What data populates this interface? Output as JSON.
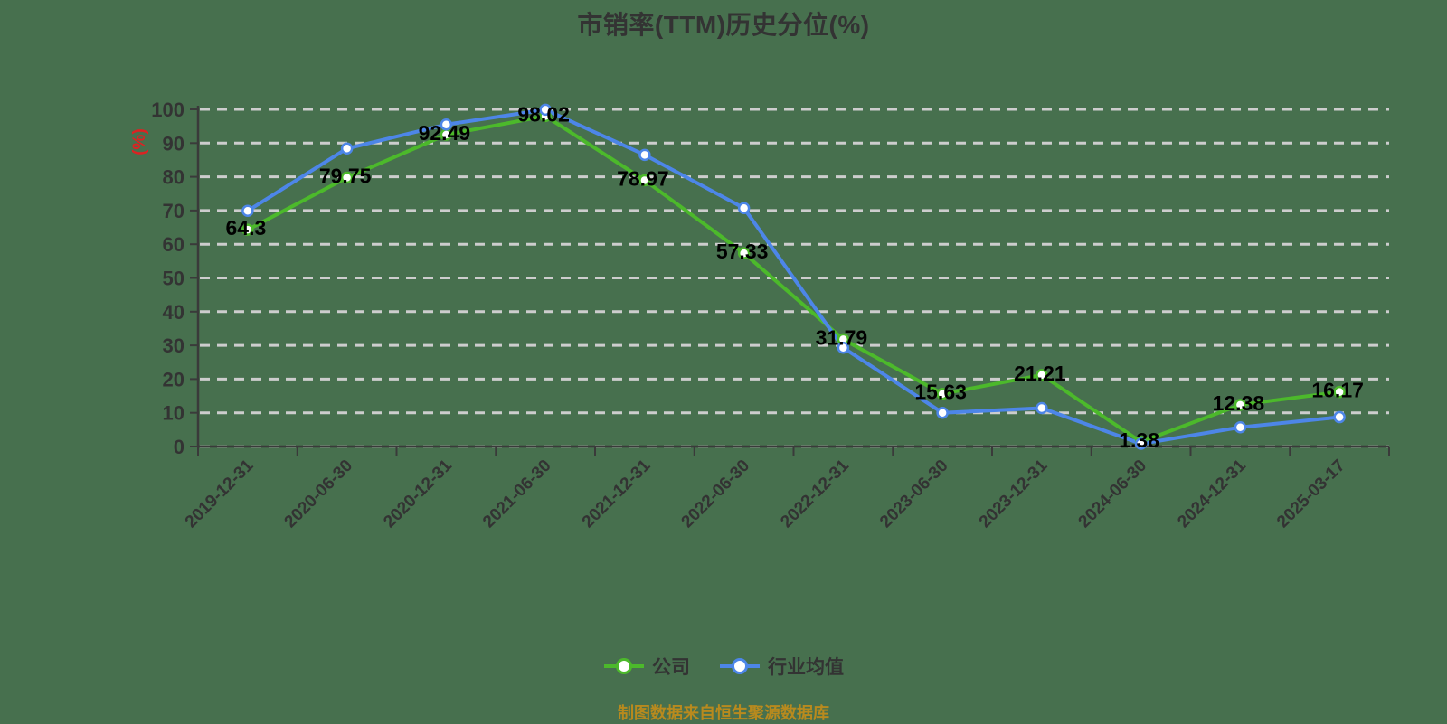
{
  "title": "市销率(TTM)历史分位(%)",
  "source_note": "制图数据来自恒生聚源数据库",
  "colors": {
    "background": "#47704E",
    "company": "#4CB92B",
    "industry": "#4D86E8",
    "grid": "#CDCDCD",
    "axis": "#3A3A3A",
    "axis_name": "#DD2222",
    "data_label": "#000000",
    "source_note": "#B88A1E",
    "text": "#333333",
    "marker_fill": "#FFFFFF"
  },
  "legend": {
    "items": [
      {
        "label": "公司",
        "color": "#4CB92B"
      },
      {
        "label": "行业均值",
        "color": "#4D86E8"
      }
    ]
  },
  "chart_data": {
    "type": "line",
    "title": "市销率(TTM)历史分位(%)",
    "xlabel": "",
    "ylabel": "(%)",
    "ylim": [
      0,
      100
    ],
    "y_tick_step": 10,
    "grid": "horizontal-dashed",
    "legend_position": "bottom",
    "categories": [
      "2019-12-31",
      "2020-06-30",
      "2020-12-31",
      "2021-06-30",
      "2021-12-31",
      "2022-06-30",
      "2022-12-31",
      "2023-06-30",
      "2023-12-31",
      "2024-06-30",
      "2024-12-31",
      "2025-03-17"
    ],
    "series": [
      {
        "name": "公司",
        "color": "#4CB92B",
        "values": [
          64.3,
          79.75,
          92.49,
          98.02,
          78.97,
          57.33,
          31.79,
          15.63,
          21.21,
          1.38,
          12.38,
          16.17
        ],
        "point_labels": [
          "64.3",
          "79.75",
          "92.49",
          "98.02",
          "78.97",
          "57.33",
          "31.79",
          "15.63",
          "21.21",
          "1.38",
          "12.38",
          "16.17"
        ]
      },
      {
        "name": "行业均值",
        "color": "#4D86E8",
        "values": [
          69.9,
          88.4,
          95.5,
          99.9,
          86.5,
          70.7,
          29.3,
          10.0,
          11.4,
          0.8,
          5.7,
          8.7
        ],
        "point_labels": null
      }
    ]
  }
}
